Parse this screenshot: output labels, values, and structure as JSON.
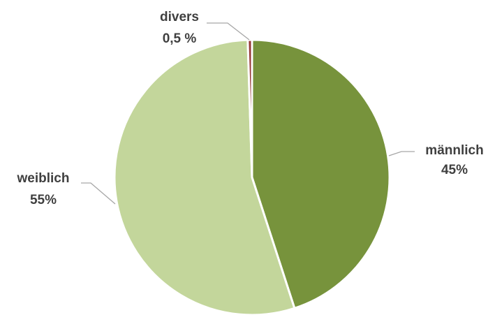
{
  "chart_data": {
    "type": "pie",
    "start_angle_deg": 0,
    "direction": "clockwise",
    "slices": [
      {
        "label": "männlich",
        "value_label": "45%",
        "value": 45.0,
        "color": "#77933c"
      },
      {
        "label": "weiblich",
        "value_label": "55%",
        "value": 54.5,
        "color": "#c3d69b"
      },
      {
        "label": "divers",
        "value_label": "0,5 %",
        "value": 0.5,
        "color": "#953735"
      }
    ],
    "legend": "none",
    "title": ""
  }
}
